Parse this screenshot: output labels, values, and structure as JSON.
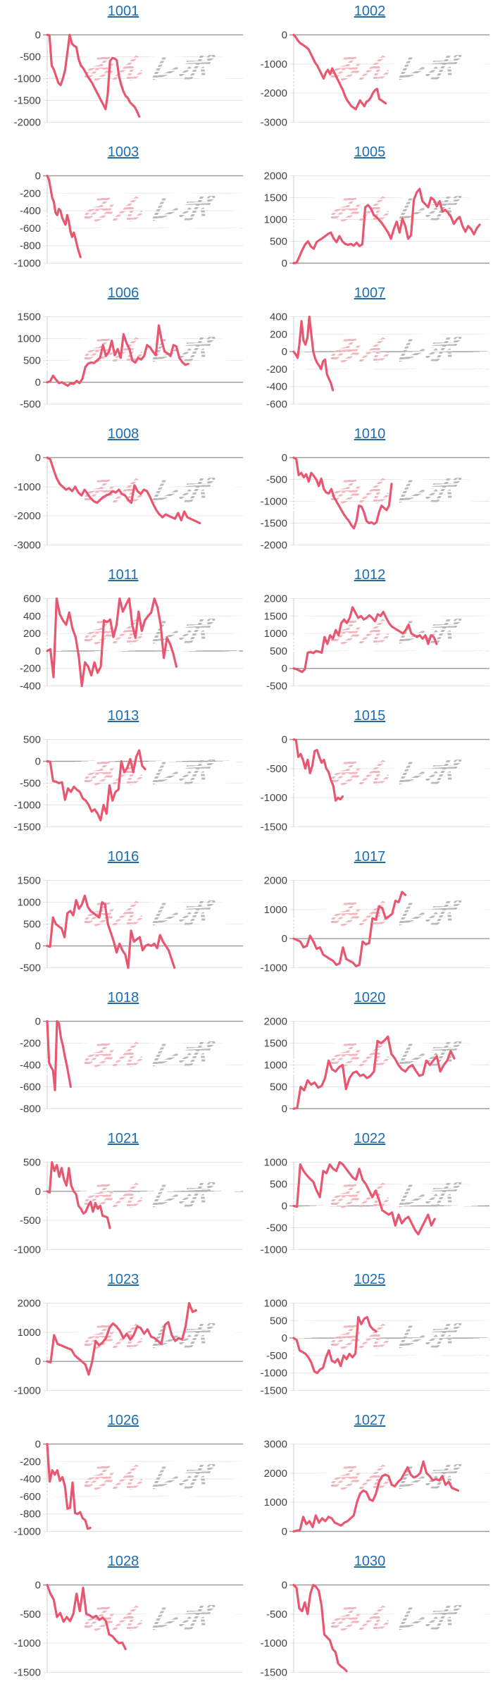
{
  "page": {
    "background": "#ffffff"
  },
  "watermark": {
    "part1": "みん",
    "part2": "レポ",
    "color1": "#f3b6be",
    "color2": "#b9b9b9"
  },
  "style": {
    "line_color": "#e8566f",
    "grid_color": "#e6e6e6",
    "zero_line_color": "#9b9b9b",
    "axis_border_color": "#cccccc",
    "title_link_color": "#1e6cb0",
    "tick_label_color": "#444444"
  },
  "chart_data": [
    {
      "id": "1001",
      "type": "line",
      "title_link": "1001",
      "ylim": [
        -2000,
        0
      ],
      "yticks": [
        0,
        -500,
        -1000,
        -1500,
        -2000
      ],
      "x_end": 0.47,
      "grid": true,
      "values": [
        0,
        -10,
        -700,
        -800,
        -950,
        -1100,
        -1150,
        -1000,
        -800,
        -400,
        0,
        -200,
        -250,
        -280,
        -550,
        -700,
        -760,
        -850,
        -950,
        -1020,
        -1100,
        -1200,
        -1300,
        -1400,
        -1500,
        -1600,
        -1700,
        -1350,
        -600,
        -530,
        -540,
        -580,
        -950,
        -1150,
        -1300,
        -1400,
        -1450,
        -1550,
        -1600,
        -1650,
        -1750,
        -1870
      ]
    },
    {
      "id": "1002",
      "type": "line",
      "title_link": "1002",
      "ylim": [
        -3000,
        0
      ],
      "yticks": [
        0,
        -1000,
        -2000,
        -3000
      ],
      "x_end": 0.47,
      "grid": true,
      "values": [
        0,
        -80,
        -200,
        -280,
        -330,
        -380,
        -430,
        -500,
        -650,
        -800,
        -950,
        -1050,
        -1200,
        -1350,
        -1500,
        -1300,
        -1200,
        -1350,
        -1150,
        -1300,
        -1450,
        -1600,
        -1750,
        -1900,
        -2100,
        -2250,
        -2350,
        -2450,
        -2500,
        -2550,
        -2400,
        -2250,
        -2350,
        -2450,
        -2300,
        -2250,
        -2150,
        -2000,
        -1900,
        -1850,
        -2200,
        -2250,
        -2300,
        -2350
      ]
    },
    {
      "id": "1003",
      "type": "line",
      "title_link": "1003",
      "ylim": [
        -1000,
        0
      ],
      "yticks": [
        0,
        -200,
        -400,
        -600,
        -800,
        -1000
      ],
      "x_end": 0.17,
      "grid": true,
      "values": [
        0,
        -40,
        -140,
        -250,
        -300,
        -420,
        -450,
        -380,
        -400,
        -480,
        -520,
        -560,
        -450,
        -520,
        -640,
        -700,
        -650,
        -720,
        -800,
        -870,
        -930
      ]
    },
    {
      "id": "1005",
      "type": "line",
      "title_link": "1005",
      "ylim": [
        0,
        2000
      ],
      "yticks": [
        2000,
        1500,
        1000,
        500,
        0
      ],
      "x_end": 0.95,
      "grid": true,
      "values": [
        0,
        10,
        150,
        300,
        430,
        500,
        380,
        330,
        480,
        530,
        570,
        620,
        670,
        700,
        560,
        480,
        620,
        500,
        440,
        420,
        440,
        400,
        470,
        390,
        430,
        1280,
        1330,
        1250,
        1100,
        1050,
        980,
        900,
        800,
        700,
        560,
        780,
        950,
        700,
        1020,
        850,
        560,
        640,
        1450,
        1620,
        1700,
        1420,
        1350,
        1280,
        1500,
        1450,
        1300,
        1420,
        1180,
        1220,
        1150,
        1050,
        900,
        1000,
        1060,
        850,
        720,
        850,
        780,
        660,
        800,
        880
      ]
    },
    {
      "id": "1006",
      "type": "line",
      "title_link": "1006",
      "ylim": [
        -500,
        1500
      ],
      "yticks": [
        1500,
        1000,
        500,
        0,
        -500
      ],
      "x_end": 0.72,
      "grid": true,
      "values": [
        0,
        20,
        150,
        60,
        -20,
        0,
        -40,
        -80,
        -20,
        -40,
        30,
        -20,
        80,
        350,
        430,
        450,
        440,
        500,
        560,
        850,
        600,
        700,
        950,
        620,
        760,
        560,
        1100,
        900,
        760,
        500,
        450,
        560,
        520,
        600,
        850,
        800,
        700,
        620,
        1300,
        950,
        700,
        660,
        600,
        850,
        820,
        560,
        460,
        400,
        420
      ]
    },
    {
      "id": "1007",
      "type": "line",
      "title_link": "1007",
      "ylim": [
        -600,
        400
      ],
      "yticks": [
        400,
        200,
        0,
        -200,
        -400,
        -600
      ],
      "x_end": 0.2,
      "grid": true,
      "values": [
        0,
        -30,
        -70,
        100,
        350,
        130,
        80,
        160,
        400,
        200,
        0,
        -80,
        -130,
        -160,
        -200,
        -110,
        -90,
        -260,
        -310,
        -360,
        -440
      ]
    },
    {
      "id": "1008",
      "type": "line",
      "title_link": "1008",
      "ylim": [
        -3000,
        0
      ],
      "yticks": [
        0,
        -1000,
        -2000,
        -3000
      ],
      "x_end": 0.78,
      "grid": true,
      "values": [
        0,
        -60,
        -400,
        -700,
        -900,
        -1000,
        -1100,
        -1050,
        -1150,
        -1000,
        -1200,
        -1300,
        -1100,
        -1250,
        -1400,
        -1500,
        -1550,
        -1450,
        -1350,
        -1300,
        -1250,
        -1150,
        -1200,
        -1100,
        -1250,
        -1300,
        -1450,
        -1550,
        -950,
        -1150,
        -1250,
        -1100,
        -1150,
        -1350,
        -1600,
        -1800,
        -1950,
        -2050,
        -1950,
        -2000,
        -2050,
        -2100,
        -1900,
        -2150,
        -1850,
        -2050,
        -2100,
        -2150,
        -2200,
        -2250
      ]
    },
    {
      "id": "1010",
      "type": "line",
      "title_link": "1010",
      "ylim": [
        -2000,
        0
      ],
      "yticks": [
        0,
        -500,
        -1000,
        -1500,
        -2000
      ],
      "x_end": 0.5,
      "grid": true,
      "values": [
        0,
        -30,
        -400,
        -350,
        -450,
        -380,
        -550,
        -350,
        -420,
        -500,
        -650,
        -480,
        -720,
        -800,
        -820,
        -720,
        -900,
        -1000,
        -1100,
        -1200,
        -1300,
        -1380,
        -1450,
        -1550,
        -1620,
        -1450,
        -1100,
        -1120,
        -1250,
        -1450,
        -1500,
        -1480,
        -1520,
        -1480,
        -1250,
        -1100,
        -1150,
        -1200,
        -1100,
        -600
      ]
    },
    {
      "id": "1011",
      "type": "line",
      "title_link": "1011",
      "ylim": [
        -400,
        600
      ],
      "yticks": [
        600,
        400,
        200,
        0,
        -200,
        -400
      ],
      "x_end": 0.66,
      "grid": true,
      "values": [
        0,
        20,
        -300,
        600,
        420,
        350,
        300,
        440,
        260,
        160,
        -60,
        -400,
        -130,
        -180,
        -280,
        -130,
        -250,
        -180,
        350,
        330,
        360,
        160,
        300,
        600,
        450,
        530,
        600,
        300,
        150,
        450,
        230,
        350,
        400,
        440,
        600,
        500,
        300,
        -80,
        150,
        80,
        -30,
        -180
      ]
    },
    {
      "id": "1012",
      "type": "line",
      "title_link": "1012",
      "ylim": [
        -500,
        2000
      ],
      "yticks": [
        2000,
        1500,
        1000,
        500,
        0,
        -500
      ],
      "x_end": 0.73,
      "grid": true,
      "values": [
        0,
        -20,
        -60,
        -100,
        -20,
        450,
        470,
        440,
        500,
        480,
        450,
        900,
        700,
        950,
        850,
        1100,
        950,
        1300,
        1400,
        1300,
        1450,
        1750,
        1600,
        1450,
        1500,
        1400,
        1450,
        1520,
        1450,
        1350,
        1550,
        1500,
        1620,
        1450,
        1300,
        1200,
        1150,
        1100,
        1050,
        1000,
        1100,
        1250,
        1000,
        950,
        900,
        950,
        850,
        950,
        700,
        950,
        900,
        700
      ]
    },
    {
      "id": "1013",
      "type": "line",
      "title_link": "1013",
      "ylim": [
        -1500,
        500
      ],
      "yticks": [
        500,
        0,
        -500,
        -1000,
        -1500
      ],
      "x_end": 0.5,
      "grid": true,
      "values": [
        0,
        -10,
        -450,
        -470,
        -500,
        -480,
        -880,
        -620,
        -700,
        -580,
        -650,
        -700,
        -850,
        -900,
        -1000,
        -1150,
        -1100,
        -1200,
        -1350,
        -1000,
        -1200,
        -550,
        -900,
        -700,
        -650,
        0,
        -250,
        -150,
        50,
        -250,
        100,
        250,
        -100,
        -180
      ]
    },
    {
      "id": "1015",
      "type": "line",
      "title_link": "1015",
      "ylim": [
        -1500,
        0
      ],
      "yticks": [
        0,
        -500,
        -1000,
        -1500
      ],
      "x_end": 0.25,
      "grid": true,
      "values": [
        0,
        -10,
        -300,
        -250,
        -350,
        -500,
        -350,
        -580,
        -450,
        -200,
        -180,
        -300,
        -400,
        -350,
        -500,
        -560,
        -700,
        -800,
        -1050,
        -1000,
        -1030,
        -980
      ]
    },
    {
      "id": "1016",
      "type": "line",
      "title_link": "1016",
      "ylim": [
        -500,
        1500
      ],
      "yticks": [
        1500,
        1000,
        500,
        0,
        -500
      ],
      "x_end": 0.65,
      "grid": true,
      "values": [
        0,
        -20,
        650,
        500,
        450,
        400,
        200,
        750,
        800,
        700,
        1050,
        850,
        950,
        1150,
        900,
        800,
        750,
        700,
        650,
        1000,
        950,
        500,
        300,
        100,
        -150,
        50,
        -100,
        -200,
        -500,
        350,
        100,
        150,
        200,
        -100,
        0,
        30,
        0,
        50,
        -50,
        250,
        100,
        0,
        -100,
        -300,
        -500
      ]
    },
    {
      "id": "1017",
      "type": "line",
      "title_link": "1017",
      "ylim": [
        -1000,
        2000
      ],
      "yticks": [
        2000,
        1000,
        0,
        -1000
      ],
      "x_end": 0.57,
      "grid": true,
      "values": [
        0,
        -50,
        -100,
        -300,
        -250,
        100,
        -100,
        -350,
        -300,
        -550,
        -620,
        -700,
        -760,
        -900,
        -850,
        -300,
        -700,
        -760,
        -820,
        -950,
        -900,
        -100,
        -200,
        -150,
        700,
        650,
        1100,
        1050,
        700,
        760,
        850,
        1300,
        1250,
        1600,
        1500
      ]
    },
    {
      "id": "1018",
      "type": "line",
      "title_link": "1018",
      "ylim": [
        -800,
        0
      ],
      "yticks": [
        0,
        -200,
        -400,
        -600,
        -800
      ],
      "x_end": 0.12,
      "grid": true,
      "values": [
        0,
        -380,
        -420,
        -450,
        -630,
        0,
        -20,
        -150,
        -220,
        -320,
        -400,
        -500,
        -600
      ]
    },
    {
      "id": "1020",
      "type": "line",
      "title_link": "1020",
      "ylim": [
        0,
        2000
      ],
      "yticks": [
        2000,
        1500,
        1000,
        500,
        0
      ],
      "x_end": 0.82,
      "grid": true,
      "values": [
        0,
        20,
        500,
        420,
        650,
        550,
        600,
        480,
        520,
        700,
        1100,
        900,
        850,
        950,
        1000,
        450,
        700,
        820,
        850,
        750,
        780,
        700,
        750,
        850,
        1550,
        1500,
        1560,
        1650,
        1250,
        1150,
        1000,
        900,
        850,
        950,
        1000,
        870,
        750,
        780,
        1100,
        1000,
        1100,
        1200,
        850,
        1000,
        1100,
        1320,
        1150
      ]
    },
    {
      "id": "1021",
      "type": "line",
      "title_link": "1021",
      "ylim": [
        -1000,
        500
      ],
      "yticks": [
        500,
        0,
        -500,
        -1000
      ],
      "x_end": 0.32,
      "grid": true,
      "values": [
        0,
        -20,
        500,
        350,
        450,
        250,
        400,
        200,
        100,
        400,
        100,
        0,
        -50,
        -250,
        -300,
        -380,
        -350,
        -250,
        -180,
        -350,
        -200,
        -300,
        -250,
        -420,
        -430,
        -450,
        -630
      ]
    },
    {
      "id": "1022",
      "type": "line",
      "title_link": "1022",
      "ylim": [
        -1000,
        1000
      ],
      "yticks": [
        1000,
        500,
        0,
        -500,
        -1000
      ],
      "x_end": 0.72,
      "grid": true,
      "values": [
        0,
        -20,
        950,
        800,
        700,
        620,
        550,
        350,
        200,
        800,
        750,
        950,
        850,
        800,
        1000,
        950,
        850,
        750,
        650,
        600,
        850,
        600,
        500,
        350,
        200,
        350,
        150,
        -100,
        -150,
        -200,
        -150,
        -450,
        -200,
        -400,
        -300,
        -250,
        -400,
        -550,
        -650,
        -500,
        -350,
        -200,
        -450,
        -300
      ]
    },
    {
      "id": "1023",
      "type": "line",
      "title_link": "1023",
      "ylim": [
        -1000,
        2000
      ],
      "yticks": [
        2000,
        1000,
        0,
        -1000
      ],
      "x_end": 0.76,
      "grid": true,
      "values": [
        0,
        -30,
        900,
        600,
        550,
        500,
        450,
        400,
        200,
        100,
        0,
        -100,
        -450,
        0,
        700,
        550,
        650,
        800,
        1150,
        1300,
        1200,
        1050,
        800,
        950,
        750,
        900,
        1200,
        1150,
        950,
        1100,
        850,
        800,
        700,
        600,
        1250,
        1350,
        900,
        700,
        800,
        750,
        1200,
        2000,
        1700,
        1750
      ]
    },
    {
      "id": "1025",
      "type": "line",
      "title_link": "1025",
      "ylim": [
        -1500,
        1000
      ],
      "yticks": [
        1000,
        500,
        0,
        -500,
        -1000,
        -1500
      ],
      "x_end": 0.42,
      "grid": true,
      "values": [
        0,
        -50,
        -350,
        -400,
        -450,
        -550,
        -700,
        -950,
        -1000,
        -900,
        -850,
        -550,
        -350,
        -650,
        -700,
        -600,
        -800,
        -500,
        -600,
        -450,
        -550,
        -450,
        600,
        400,
        550,
        600,
        350,
        250,
        200
      ]
    },
    {
      "id": "1026",
      "type": "line",
      "title_link": "1026",
      "ylim": [
        -1000,
        0
      ],
      "yticks": [
        0,
        -200,
        -400,
        -600,
        -800,
        -1000
      ],
      "x_end": 0.22,
      "grid": true,
      "values": [
        0,
        -430,
        -300,
        -350,
        -300,
        -420,
        -380,
        -480,
        -740,
        -730,
        -440,
        -790,
        -800,
        -780,
        -850,
        -870,
        -970,
        -960
      ]
    },
    {
      "id": "1027",
      "type": "line",
      "title_link": "1027",
      "ylim": [
        0,
        3000
      ],
      "yticks": [
        3000,
        2000,
        1000,
        0
      ],
      "x_end": 0.84,
      "grid": true,
      "values": [
        0,
        30,
        50,
        500,
        250,
        350,
        150,
        550,
        300,
        450,
        350,
        500,
        450,
        300,
        250,
        200,
        300,
        350,
        450,
        550,
        1000,
        1300,
        1400,
        1350,
        1100,
        1050,
        1300,
        1700,
        1900,
        1950,
        1900,
        1600,
        1550,
        1700,
        1800,
        2000,
        2200,
        1950,
        1850,
        1900,
        2000,
        2400,
        2000,
        1900,
        1750,
        1800,
        1750,
        1900,
        1600,
        1700,
        1500,
        1450,
        1400
      ]
    },
    {
      "id": "1028",
      "type": "line",
      "title_link": "1028",
      "ylim": [
        -1500,
        0
      ],
      "yticks": [
        0,
        -500,
        -1000,
        -1500
      ],
      "x_end": 0.4,
      "grid": true,
      "values": [
        0,
        -150,
        -250,
        -550,
        -480,
        -630,
        -550,
        -620,
        -500,
        -150,
        -450,
        -50,
        -500,
        -520,
        -560,
        -530,
        -600,
        -560,
        -620,
        -850,
        -880,
        -950,
        -1000,
        -990,
        -1100
      ]
    },
    {
      "id": "1030",
      "type": "line",
      "title_link": "1030",
      "ylim": [
        -1500,
        0
      ],
      "yticks": [
        0,
        -500,
        -1000,
        -1500
      ],
      "x_end": 0.27,
      "grid": true,
      "values": [
        0,
        -50,
        -400,
        -450,
        -300,
        -500,
        -150,
        0,
        -30,
        -100,
        -350,
        -850,
        -900,
        -950,
        -1100,
        -1150,
        -1350,
        -1400,
        -1430,
        -1480
      ]
    }
  ]
}
